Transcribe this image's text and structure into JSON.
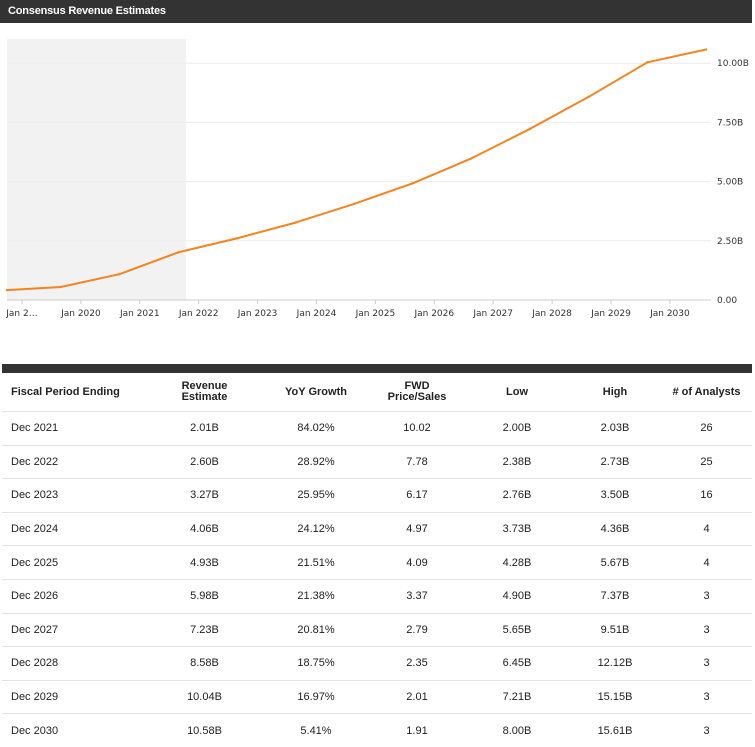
{
  "header": {
    "title": "Consensus Revenue Estimates"
  },
  "chart_data": {
    "type": "line",
    "title": "Consensus Revenue Estimates",
    "x_labels": [
      "Jan 2…",
      "Jan 2020",
      "Jan 2021",
      "Jan 2022",
      "Jan 2023",
      "Jan 2024",
      "Jan 2025",
      "Jan 2026",
      "Jan 2027",
      "Jan 2028",
      "Jan 2029",
      "Jan 2030"
    ],
    "y_ticks": [
      "0.00",
      "2.50B",
      "5.00B",
      "7.50B",
      "10.00B"
    ],
    "ylim": [
      0,
      10.6
    ],
    "y_unit": "B",
    "shaded_region": {
      "from": "2019-01",
      "to": "2021-12"
    },
    "series": [
      {
        "color": "#f5841f",
        "points": [
          {
            "x": "2019-01",
            "y": 0.42
          },
          {
            "x": "2019-12",
            "y": 0.55
          },
          {
            "x": "2020-12",
            "y": 1.09
          },
          {
            "x": "2021-12",
            "y": 2.01
          },
          {
            "x": "2022-12",
            "y": 2.6
          },
          {
            "x": "2023-12",
            "y": 3.27
          },
          {
            "x": "2024-12",
            "y": 4.06
          },
          {
            "x": "2025-12",
            "y": 4.93
          },
          {
            "x": "2026-12",
            "y": 5.98
          },
          {
            "x": "2027-12",
            "y": 7.23
          },
          {
            "x": "2028-12",
            "y": 8.58
          },
          {
            "x": "2029-12",
            "y": 10.04
          },
          {
            "x": "2030-12",
            "y": 10.58
          }
        ]
      }
    ],
    "grid": true
  },
  "table": {
    "headers": [
      "Fiscal Period Ending",
      "Revenue Estimate",
      "YoY Growth",
      "FWD Price/Sales",
      "Low",
      "High",
      "# of Analysts"
    ],
    "rows": [
      [
        "Dec 2021",
        "2.01B",
        "84.02%",
        "10.02",
        "2.00B",
        "2.03B",
        "26"
      ],
      [
        "Dec 2022",
        "2.60B",
        "28.92%",
        "7.78",
        "2.38B",
        "2.73B",
        "25"
      ],
      [
        "Dec 2023",
        "3.27B",
        "25.95%",
        "6.17",
        "2.76B",
        "3.50B",
        "16"
      ],
      [
        "Dec 2024",
        "4.06B",
        "24.12%",
        "4.97",
        "3.73B",
        "4.36B",
        "4"
      ],
      [
        "Dec 2025",
        "4.93B",
        "21.51%",
        "4.09",
        "4.28B",
        "5.67B",
        "4"
      ],
      [
        "Dec 2026",
        "5.98B",
        "21.38%",
        "3.37",
        "4.90B",
        "7.37B",
        "3"
      ],
      [
        "Dec 2027",
        "7.23B",
        "20.81%",
        "2.79",
        "5.65B",
        "9.51B",
        "3"
      ],
      [
        "Dec 2028",
        "8.58B",
        "18.75%",
        "2.35",
        "6.45B",
        "12.12B",
        "3"
      ],
      [
        "Dec 2029",
        "10.04B",
        "16.97%",
        "2.01",
        "7.21B",
        "15.15B",
        "3"
      ],
      [
        "Dec 2030",
        "10.58B",
        "5.41%",
        "1.91",
        "8.00B",
        "15.61B",
        "3"
      ]
    ]
  }
}
